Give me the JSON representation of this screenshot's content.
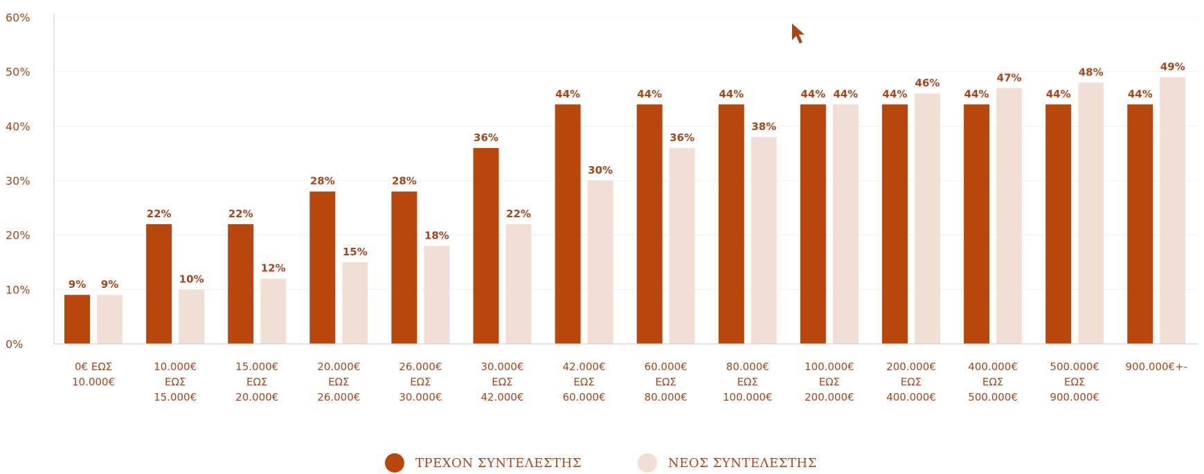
{
  "chart_data": {
    "type": "bar",
    "title": "",
    "xlabel": "",
    "ylabel": "",
    "ylim": [
      0,
      60
    ],
    "yticks": [
      "0%",
      "10%",
      "20%",
      "30%",
      "40%",
      "50%",
      "60%"
    ],
    "grid": true,
    "legend_position": "bottom-center",
    "categories": [
      [
        "0€ ΕΩΣ",
        "10.000€"
      ],
      [
        "10.000€",
        "ΕΩΣ",
        "15.000€"
      ],
      [
        "15.000€",
        "ΕΩΣ",
        "20.000€"
      ],
      [
        "20.000€",
        "ΕΩΣ",
        "26.000€"
      ],
      [
        "26.000€",
        "ΕΩΣ",
        "30.000€"
      ],
      [
        "30.000€",
        "ΕΩΣ",
        "42.000€"
      ],
      [
        "42.000€",
        "ΕΩΣ",
        "60.000€"
      ],
      [
        "60.000€",
        "ΕΩΣ",
        "80.000€"
      ],
      [
        "80.000€",
        "ΕΩΣ",
        "100.000€"
      ],
      [
        "100.000€",
        "ΕΩΣ",
        "200.000€"
      ],
      [
        "200.000€",
        "ΕΩΣ",
        "400.000€"
      ],
      [
        "400.000€",
        "ΕΩΣ",
        "500.000€"
      ],
      [
        "500.000€",
        "ΕΩΣ",
        "900.000€"
      ],
      [
        "900.000€+-"
      ]
    ],
    "series": [
      {
        "name": "ΤΡΕΧΟΝ ΣΥΝΤΕΛΕΣΤΗΣ",
        "color": "#b8470e",
        "values": [
          9,
          22,
          22,
          28,
          28,
          36,
          44,
          44,
          44,
          44,
          44,
          44,
          44,
          44
        ],
        "labels": [
          "9%",
          "22%",
          "22%",
          "28%",
          "28%",
          "36%",
          "44%",
          "44%",
          "44%",
          "44%",
          "44%",
          "44%",
          "44%",
          "44%"
        ]
      },
      {
        "name": "ΝΕΟΣ ΣΥΝΤΕΛΕΣΤΗΣ",
        "color": "#f1dfd6",
        "values": [
          9,
          10,
          12,
          15,
          18,
          22,
          30,
          36,
          38,
          44,
          46,
          47,
          48,
          49
        ],
        "labels": [
          "9%",
          "10%",
          "12%",
          "15%",
          "18%",
          "22%",
          "30%",
          "36%",
          "38%",
          "44%",
          "46%",
          "47%",
          "48%",
          "49%"
        ]
      }
    ]
  },
  "colors": {
    "text": "#a8461b",
    "grid": "#f3eeec",
    "axis": "#d9cfcb"
  },
  "legend": {
    "items": [
      {
        "label": "ΤΡΕΧΟΝ ΣΥΝΤΕΛΕΣΤΗΣ",
        "color": "#b8470e"
      },
      {
        "label": "ΝΕΟΣ ΣΥΝΤΕΛΕΣΤΗΣ",
        "color": "#f1dfd6"
      }
    ]
  }
}
